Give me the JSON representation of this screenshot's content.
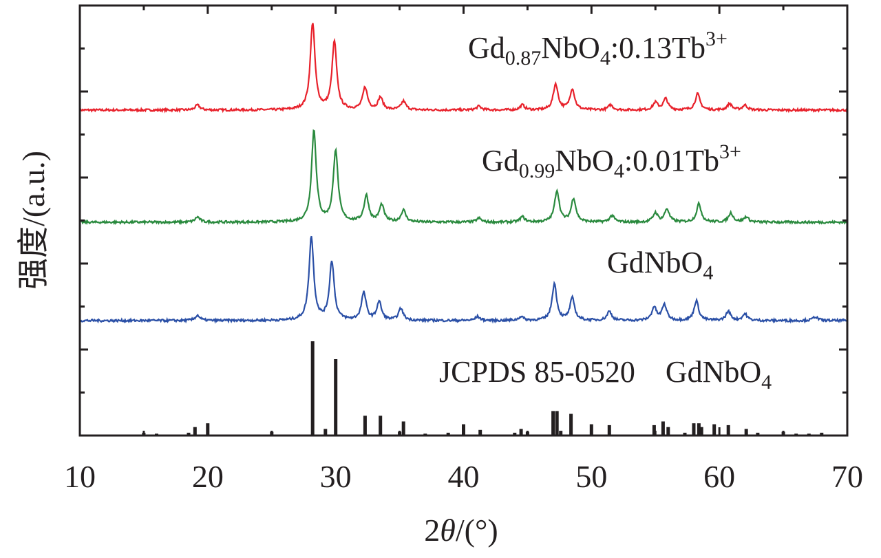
{
  "chart_data": {
    "type": "line",
    "xlabel": {
      "prefix": "2",
      "italic": "θ",
      "suffix": "/(°)"
    },
    "ylabel": "强度/(a.u.)",
    "xlim": [
      10,
      70
    ],
    "x_ticks": [
      "10",
      "20",
      "30",
      "40",
      "50",
      "60",
      "70"
    ],
    "grid": false,
    "series": [
      {
        "name": "Gd0.87NbO4:0.13Tb3+",
        "label_parts": {
          "a": "Gd",
          "b": "0.87",
          "c": "NbO",
          "d": "4",
          "e": ":0.13Tb",
          "f": "3+"
        },
        "color": "#e8212b",
        "baseline": 0.09,
        "peaks": [
          [
            19.2,
            0.04
          ],
          [
            28.2,
            0.7
          ],
          [
            29.9,
            0.55
          ],
          [
            32.3,
            0.18
          ],
          [
            33.5,
            0.1
          ],
          [
            35.3,
            0.07
          ],
          [
            41.2,
            0.03
          ],
          [
            44.6,
            0.04
          ],
          [
            47.2,
            0.21
          ],
          [
            48.5,
            0.17
          ],
          [
            51.5,
            0.04
          ],
          [
            55.0,
            0.06
          ],
          [
            55.8,
            0.09
          ],
          [
            58.3,
            0.13
          ],
          [
            60.8,
            0.05
          ],
          [
            62.0,
            0.04
          ]
        ]
      },
      {
        "name": "Gd0.99NbO4:0.01Tb3+",
        "label_parts": {
          "a": "Gd",
          "b": "0.99",
          "c": "NbO",
          "d": "4",
          "e": ":0.01Tb",
          "f": "3+"
        },
        "color": "#2a8a3e",
        "baseline": 0.09,
        "peaks": [
          [
            19.2,
            0.04
          ],
          [
            28.3,
            0.7
          ],
          [
            30.0,
            0.55
          ],
          [
            32.4,
            0.2
          ],
          [
            33.6,
            0.13
          ],
          [
            35.3,
            0.09
          ],
          [
            41.2,
            0.03
          ],
          [
            44.6,
            0.04
          ],
          [
            47.3,
            0.24
          ],
          [
            48.6,
            0.18
          ],
          [
            51.6,
            0.05
          ],
          [
            55.0,
            0.07
          ],
          [
            55.9,
            0.1
          ],
          [
            58.4,
            0.14
          ],
          [
            60.9,
            0.07
          ],
          [
            62.1,
            0.04
          ]
        ]
      },
      {
        "name": "GdNbO4",
        "label_parts": {
          "a": "GdNbO",
          "b": "",
          "c": "",
          "d": "4",
          "e": "",
          "f": ""
        },
        "color": "#2a4fa6",
        "baseline": 0.09,
        "peaks": [
          [
            19.2,
            0.04
          ],
          [
            28.1,
            0.64
          ],
          [
            29.7,
            0.45
          ],
          [
            32.2,
            0.21
          ],
          [
            33.4,
            0.14
          ],
          [
            35.1,
            0.09
          ],
          [
            41.1,
            0.03
          ],
          [
            44.5,
            0.03
          ],
          [
            47.1,
            0.28
          ],
          [
            48.5,
            0.17
          ],
          [
            51.4,
            0.07
          ],
          [
            54.9,
            0.1
          ],
          [
            55.7,
            0.12
          ],
          [
            58.2,
            0.15
          ],
          [
            60.7,
            0.07
          ],
          [
            62.0,
            0.05
          ],
          [
            67.5,
            0.03
          ]
        ]
      }
    ],
    "reference": {
      "name": "JCPDS 85-0520",
      "label": "JCPDS 85-0520",
      "phase": "GdNbO",
      "phase_sub": "4",
      "color": "#231f20",
      "sticks": [
        [
          15.0,
          0.03
        ],
        [
          16.0,
          0.02
        ],
        [
          18.5,
          0.03
        ],
        [
          19.0,
          0.09
        ],
        [
          20.0,
          0.13
        ],
        [
          25.0,
          0.04
        ],
        [
          28.2,
          1.0
        ],
        [
          29.2,
          0.07
        ],
        [
          30.0,
          0.81
        ],
        [
          32.3,
          0.21
        ],
        [
          33.5,
          0.21
        ],
        [
          35.0,
          0.04
        ],
        [
          35.3,
          0.15
        ],
        [
          37.0,
          0.02
        ],
        [
          38.8,
          0.03
        ],
        [
          40.0,
          0.12
        ],
        [
          41.3,
          0.06
        ],
        [
          44.0,
          0.03
        ],
        [
          44.5,
          0.07
        ],
        [
          45.0,
          0.04
        ],
        [
          47.0,
          0.26
        ],
        [
          47.3,
          0.26
        ],
        [
          47.6,
          0.05
        ],
        [
          48.4,
          0.23
        ],
        [
          50.0,
          0.12
        ],
        [
          51.4,
          0.11
        ],
        [
          54.9,
          0.11
        ],
        [
          55.6,
          0.15
        ],
        [
          56.0,
          0.09
        ],
        [
          57.3,
          0.03
        ],
        [
          58.0,
          0.13
        ],
        [
          58.4,
          0.13
        ],
        [
          58.6,
          0.09
        ],
        [
          59.6,
          0.12
        ],
        [
          60.7,
          0.11
        ],
        [
          62.1,
          0.07
        ],
        [
          63.0,
          0.03
        ],
        [
          65.0,
          0.04
        ],
        [
          66.0,
          0.02
        ],
        [
          67.0,
          0.02
        ],
        [
          68.0,
          0.03
        ]
      ]
    }
  }
}
